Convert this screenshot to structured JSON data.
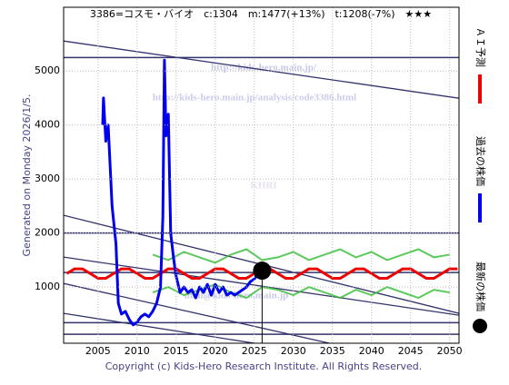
{
  "chart_data": {
    "type": "line",
    "title": "3386=コスモ・バイオ　c:1304　m:1477(+13%)　t:1208(-7%)　★★★",
    "side_note": "Generated on Monday 2026/1/5.",
    "footer": "Copyright (c) Kids-Hero Research Institute. All Rights Reserved.",
    "watermarks": [
      "http://kids-hero.main.jp/",
      "http://kids-hero.main.jp/analysis/code3386.html",
      "KHRI",
      "mail@kids-hero.main.jp"
    ],
    "xlim": [
      2000.6,
      2051.2
    ],
    "ylim": [
      -40,
      6180
    ],
    "xticks": [
      2005,
      2010,
      2015,
      2020,
      2025,
      2030,
      2035,
      2040,
      2045,
      2050
    ],
    "yticks": [
      1000,
      2000,
      3000,
      4000,
      5000
    ],
    "grid": true,
    "series": [
      {
        "name": "過去の株価",
        "color": "#0000ee",
        "x": [
          2005.6,
          2005.7,
          2006,
          2006.3,
          2006.8,
          2007.3,
          2007.6,
          2008,
          2008.5,
          2009,
          2009.5,
          2010,
          2010.5,
          2011,
          2011.5,
          2012,
          2012.5,
          2013,
          2013.3,
          2013.5,
          2013.7,
          2014,
          2014.3,
          2014.7,
          2015,
          2015.5,
          2016,
          2016.5,
          2017,
          2017.5,
          2018,
          2018.5,
          2019,
          2019.5,
          2020,
          2020.5,
          2021,
          2021.5,
          2022,
          2022.5,
          2023,
          2023.5,
          2024,
          2024.5,
          2025,
          2025.5
        ],
        "values": [
          4000,
          4500,
          3700,
          4000,
          2500,
          1800,
          700,
          500,
          550,
          400,
          300,
          350,
          450,
          500,
          450,
          550,
          700,
          1000,
          2300,
          5200,
          3800,
          4200,
          2000,
          1500,
          1200,
          900,
          1000,
          900,
          950,
          800,
          1000,
          900,
          1050,
          850,
          1050,
          900,
          1000,
          850,
          900,
          850,
          900,
          950,
          1000,
          1100,
          1150,
          1250
        ]
      },
      {
        "name": "ＡＩ予測",
        "color": "#ee0000",
        "x": [
          2001,
          2002,
          2003,
          2004,
          2005,
          2006,
          2007,
          2008,
          2009,
          2010,
          2011,
          2012,
          2013,
          2014,
          2015,
          2016,
          2017,
          2018,
          2019,
          2020,
          2021,
          2022,
          2023,
          2024,
          2025,
          2026,
          2027,
          2028,
          2029,
          2030,
          2031,
          2032,
          2033,
          2034,
          2035,
          2036,
          2037,
          2038,
          2039,
          2040,
          2041,
          2042,
          2043,
          2044,
          2045,
          2046,
          2047,
          2048,
          2049,
          2050,
          2051
        ],
        "values": [
          1250,
          1337,
          1337,
          1250,
          1163,
          1163,
          1250,
          1337,
          1337,
          1250,
          1163,
          1163,
          1250,
          1337,
          1337,
          1250,
          1163,
          1163,
          1250,
          1337,
          1337,
          1250,
          1163,
          1163,
          1250,
          1337,
          1337,
          1250,
          1163,
          1163,
          1250,
          1337,
          1337,
          1250,
          1163,
          1163,
          1250,
          1337,
          1337,
          1250,
          1163,
          1163,
          1250,
          1337,
          1337,
          1250,
          1163,
          1163,
          1250,
          1337,
          1337
        ]
      },
      {
        "name": "最新の株価",
        "color": "#000000",
        "x": [
          2026
        ],
        "values": [
          1304
        ]
      }
    ],
    "bands": [
      {
        "color": "#33bb33",
        "x": [
          2012,
          2014,
          2016,
          2018,
          2020,
          2022,
          2024,
          2026,
          2028,
          2030,
          2032,
          2034,
          2036,
          2038,
          2040,
          2042,
          2044,
          2046,
          2048,
          2050
        ],
        "values": [
          1600,
          1500,
          1650,
          1550,
          1450,
          1600,
          1700,
          1500,
          1550,
          1650,
          1500,
          1600,
          1700,
          1550,
          1650,
          1500,
          1600,
          1700,
          1550,
          1600
        ]
      },
      {
        "color": "#33bb33",
        "x": [
          2012,
          2014,
          2016,
          2018,
          2020,
          2022,
          2024,
          2026,
          2028,
          2030,
          2032,
          2034,
          2036,
          2038,
          2040,
          2042,
          2044,
          2046,
          2048,
          2050
        ],
        "values": [
          900,
          1000,
          850,
          950,
          1050,
          900,
          800,
          1000,
          950,
          850,
          1000,
          900,
          800,
          950,
          850,
          1000,
          900,
          800,
          950,
          900
        ]
      }
    ],
    "trend_lines": [
      {
        "x": [
          2000.6,
          2051.2
        ],
        "values": [
          5555,
          4496
        ]
      },
      {
        "x": [
          2000.6,
          2051.2
        ],
        "values": [
          2328,
          513
        ]
      },
      {
        "x": [
          2000.6,
          2051.2
        ],
        "values": [
          1555,
          479
        ]
      },
      {
        "x": [
          2000.6,
          2034.6
        ],
        "values": [
          1067,
          -40
        ]
      },
      {
        "x": [
          2000.6,
          2025
        ],
        "values": [
          513,
          -40
        ]
      }
    ],
    "levels": [
      5250,
      2000,
      1270,
      340,
      125
    ]
  }
}
